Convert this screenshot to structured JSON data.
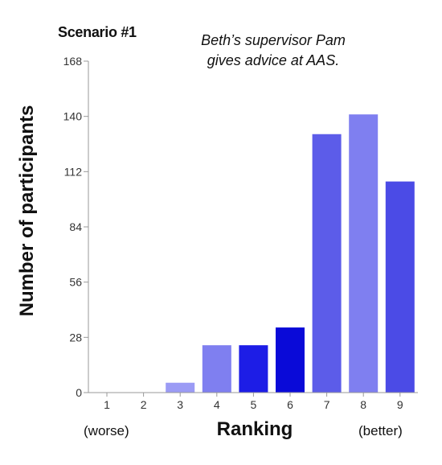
{
  "chart_data": {
    "type": "bar",
    "title": "Scenario #1",
    "subtitle": [
      "Beth’s supervisor Pam",
      "gives advice at AAS."
    ],
    "xlabel": "Ranking",
    "ylabel": "Number of participants",
    "x_annotations": {
      "left": "(worse)",
      "right": "(better)"
    },
    "categories": [
      "1",
      "2",
      "3",
      "4",
      "5",
      "6",
      "7",
      "8",
      "9"
    ],
    "values": [
      0,
      0,
      5,
      24,
      24,
      33,
      131,
      141,
      107
    ],
    "ylim": [
      0,
      168
    ],
    "yticks": [
      0,
      28,
      56,
      84,
      112,
      140,
      168
    ],
    "bar_colors": [
      "#9b9bf5",
      "#9b9bf5",
      "#9b9bf5",
      "#7f7ff0",
      "#1d1de6",
      "#0a0ad8",
      "#5c5ce9",
      "#7f7ff0",
      "#4b4be6"
    ],
    "grid": false,
    "legend": "none"
  }
}
